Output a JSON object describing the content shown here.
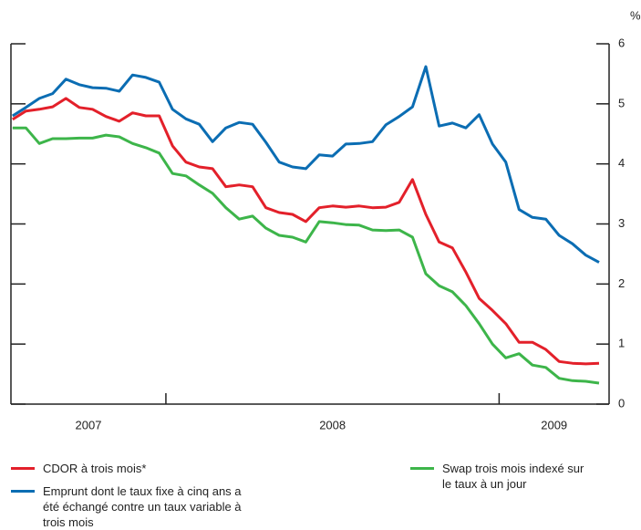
{
  "chart_data": {
    "type": "line",
    "ylabel": "%",
    "x": [
      2007.54,
      2007.58,
      2007.62,
      2007.66,
      2007.7,
      2007.74,
      2007.78,
      2007.82,
      2007.86,
      2007.9,
      2007.94,
      2007.98,
      2008.02,
      2008.06,
      2008.1,
      2008.14,
      2008.18,
      2008.22,
      2008.26,
      2008.3,
      2008.34,
      2008.38,
      2008.42,
      2008.46,
      2008.5,
      2008.54,
      2008.58,
      2008.62,
      2008.66,
      2008.7,
      2008.74,
      2008.78,
      2008.82,
      2008.86,
      2008.9,
      2008.94,
      2008.98,
      2009.02,
      2009.06,
      2009.1,
      2009.14,
      2009.18,
      2009.22,
      2009.26,
      2009.3
    ],
    "xlim": [
      2007.535,
      2009.33
    ],
    "xticks": [
      2008,
      2009
    ],
    "xlabels": [
      "2007",
      "2008",
      "2009"
    ],
    "ylim": [
      0,
      6
    ],
    "yticks": [
      0,
      1,
      2,
      3,
      4,
      5,
      6
    ],
    "series": [
      {
        "name": "CDOR à trois mois*",
        "color": "#e3202a",
        "values": [
          4.74,
          4.88,
          4.91,
          4.95,
          5.09,
          4.94,
          4.91,
          4.79,
          4.71,
          4.85,
          4.8,
          4.8,
          4.3,
          4.03,
          3.95,
          3.92,
          3.62,
          3.65,
          3.62,
          3.27,
          3.19,
          3.16,
          3.04,
          3.27,
          3.3,
          3.28,
          3.3,
          3.27,
          3.28,
          3.36,
          3.74,
          3.16,
          2.7,
          2.6,
          2.2,
          1.76,
          1.56,
          1.34,
          1.03,
          1.03,
          0.91,
          0.71,
          0.68,
          0.67,
          0.68
        ]
      },
      {
        "name": "Emprunt dont le taux fixe à cinq ans a été échangé contre un taux variable à trois mois",
        "color": "#0b6db3",
        "values": [
          4.8,
          4.94,
          5.09,
          5.17,
          5.41,
          5.32,
          5.27,
          5.26,
          5.21,
          5.48,
          5.44,
          5.36,
          4.91,
          4.75,
          4.66,
          4.37,
          4.6,
          4.69,
          4.66,
          4.36,
          4.03,
          3.95,
          3.92,
          4.15,
          4.13,
          4.33,
          4.34,
          4.37,
          4.65,
          4.79,
          4.95,
          5.62,
          4.63,
          4.68,
          4.6,
          4.82,
          4.33,
          4.03,
          3.24,
          3.11,
          3.08,
          2.81,
          2.67,
          2.48,
          2.36
        ]
      },
      {
        "name": "Swap trois mois indexé sur le taux à un jour",
        "color": "#3db54a",
        "values": [
          4.6,
          4.6,
          4.34,
          4.42,
          4.42,
          4.43,
          4.43,
          4.48,
          4.45,
          4.34,
          4.27,
          4.18,
          3.84,
          3.8,
          3.65,
          3.51,
          3.27,
          3.08,
          3.13,
          2.93,
          2.81,
          2.78,
          2.7,
          3.04,
          3.02,
          2.99,
          2.98,
          2.9,
          2.89,
          2.9,
          2.78,
          2.17,
          1.97,
          1.87,
          1.64,
          1.34,
          1.0,
          0.77,
          0.84,
          0.65,
          0.61,
          0.43,
          0.39,
          0.38,
          0.35
        ]
      }
    ]
  }
}
